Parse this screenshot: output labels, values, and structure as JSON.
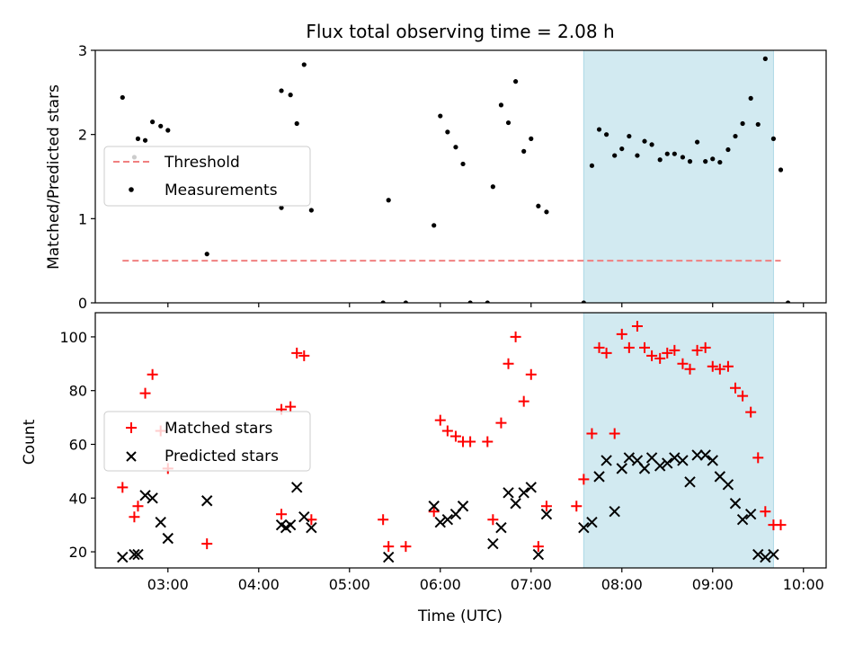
{
  "chart_data": [
    {
      "type": "scatter",
      "title": "Flux total observing time = 2.08 h",
      "xlabel": "",
      "ylabel": "Matched/Predicted stars",
      "x_unit": "hours UTC",
      "xlim": [
        2.2,
        10.25
      ],
      "ylim": [
        0,
        3
      ],
      "x_ticks": [
        3,
        4,
        5,
        6,
        7,
        8,
        9,
        10
      ],
      "y_ticks": [
        0,
        1,
        2,
        3
      ],
      "y_tick_labels": [
        "0",
        "1",
        "2",
        "3"
      ],
      "grid": false,
      "legend_position": "center-left",
      "highlight": {
        "x": [
          7.58,
          9.67
        ],
        "color": "#add8e6"
      },
      "threshold": {
        "name": "Threshold",
        "x": [
          2.5,
          9.75
        ],
        "y": 0.5,
        "color": "#f08080",
        "style": "dashed"
      },
      "series": [
        {
          "name": "Measurements",
          "marker": "dot",
          "color": "#000000",
          "points": [
            [
              2.5,
              2.44
            ],
            [
              2.63,
              1.73
            ],
            [
              2.67,
              1.95
            ],
            [
              2.75,
              1.93
            ],
            [
              2.83,
              2.15
            ],
            [
              2.92,
              2.1
            ],
            [
              3.0,
              2.05
            ],
            [
              3.43,
              0.58
            ],
            [
              4.25,
              1.13
            ],
            [
              4.25,
              2.52
            ],
            [
              4.35,
              2.47
            ],
            [
              4.42,
              2.13
            ],
            [
              4.5,
              2.83
            ],
            [
              4.58,
              1.1
            ],
            [
              5.37,
              0.0
            ],
            [
              5.43,
              1.22
            ],
            [
              5.62,
              0.0
            ],
            [
              5.93,
              0.92
            ],
            [
              6.0,
              2.22
            ],
            [
              6.08,
              2.03
            ],
            [
              6.17,
              1.85
            ],
            [
              6.25,
              1.65
            ],
            [
              6.33,
              0.0
            ],
            [
              6.52,
              0.0
            ],
            [
              6.58,
              1.38
            ],
            [
              6.67,
              2.35
            ],
            [
              6.75,
              2.14
            ],
            [
              6.83,
              2.63
            ],
            [
              6.92,
              1.8
            ],
            [
              7.0,
              1.95
            ],
            [
              7.08,
              1.15
            ],
            [
              7.17,
              1.08
            ],
            [
              7.58,
              0.0
            ],
            [
              7.67,
              1.63
            ],
            [
              7.75,
              2.06
            ],
            [
              7.83,
              2.0
            ],
            [
              7.92,
              1.75
            ],
            [
              8.0,
              1.83
            ],
            [
              8.08,
              1.98
            ],
            [
              8.17,
              1.75
            ],
            [
              8.25,
              1.92
            ],
            [
              8.33,
              1.88
            ],
            [
              8.42,
              1.7
            ],
            [
              8.5,
              1.77
            ],
            [
              8.58,
              1.77
            ],
            [
              8.67,
              1.73
            ],
            [
              8.75,
              1.68
            ],
            [
              8.83,
              1.91
            ],
            [
              8.92,
              1.68
            ],
            [
              9.0,
              1.71
            ],
            [
              9.08,
              1.67
            ],
            [
              9.17,
              1.82
            ],
            [
              9.25,
              1.98
            ],
            [
              9.33,
              2.13
            ],
            [
              9.42,
              2.43
            ],
            [
              9.5,
              2.12
            ],
            [
              9.58,
              2.9
            ],
            [
              9.67,
              1.95
            ],
            [
              9.75,
              1.58
            ],
            [
              9.83,
              0.0
            ]
          ]
        }
      ]
    },
    {
      "type": "scatter",
      "title": "",
      "xlabel": "Time (UTC)",
      "ylabel": "Count",
      "x_unit": "hours UTC",
      "xlim": [
        2.2,
        10.25
      ],
      "ylim": [
        14,
        109
      ],
      "x_ticks": [
        3,
        4,
        5,
        6,
        7,
        8,
        9,
        10
      ],
      "x_tick_labels": [
        "03:00",
        "04:00",
        "05:00",
        "06:00",
        "07:00",
        "08:00",
        "09:00",
        "10:00"
      ],
      "y_ticks": [
        20,
        40,
        60,
        80,
        100
      ],
      "y_tick_labels": [
        "20",
        "40",
        "60",
        "80",
        "100"
      ],
      "grid": false,
      "legend_position": "center-left",
      "highlight": {
        "x": [
          7.58,
          9.67
        ],
        "color": "#add8e6"
      },
      "series": [
        {
          "name": "Matched stars",
          "marker": "plus",
          "color": "#ff0000",
          "points": [
            [
              2.5,
              44
            ],
            [
              2.63,
              33
            ],
            [
              2.67,
              37
            ],
            [
              2.75,
              79
            ],
            [
              2.83,
              86
            ],
            [
              2.92,
              65
            ],
            [
              3.0,
              51
            ],
            [
              3.43,
              23
            ],
            [
              4.25,
              34
            ],
            [
              4.25,
              73
            ],
            [
              4.35,
              74
            ],
            [
              4.42,
              94
            ],
            [
              4.5,
              93
            ],
            [
              4.58,
              32
            ],
            [
              5.37,
              32
            ],
            [
              5.43,
              22
            ],
            [
              5.62,
              22
            ],
            [
              5.93,
              35
            ],
            [
              6.0,
              69
            ],
            [
              6.08,
              65
            ],
            [
              6.17,
              63
            ],
            [
              6.25,
              61
            ],
            [
              6.33,
              61
            ],
            [
              6.52,
              61
            ],
            [
              6.58,
              32
            ],
            [
              6.67,
              68
            ],
            [
              6.75,
              90
            ],
            [
              6.83,
              100
            ],
            [
              6.92,
              76
            ],
            [
              7.0,
              86
            ],
            [
              7.08,
              22
            ],
            [
              7.17,
              37
            ],
            [
              7.5,
              37
            ],
            [
              7.58,
              47
            ],
            [
              7.67,
              64
            ],
            [
              7.75,
              96
            ],
            [
              7.83,
              94
            ],
            [
              7.92,
              64
            ],
            [
              8.0,
              101
            ],
            [
              8.08,
              96
            ],
            [
              8.17,
              104
            ],
            [
              8.25,
              96
            ],
            [
              8.33,
              93
            ],
            [
              8.42,
              92
            ],
            [
              8.5,
              94
            ],
            [
              8.58,
              95
            ],
            [
              8.67,
              90
            ],
            [
              8.75,
              88
            ],
            [
              8.83,
              95
            ],
            [
              8.92,
              96
            ],
            [
              9.0,
              89
            ],
            [
              9.08,
              88
            ],
            [
              9.17,
              89
            ],
            [
              9.25,
              81
            ],
            [
              9.33,
              78
            ],
            [
              9.42,
              72
            ],
            [
              9.5,
              55
            ],
            [
              9.58,
              35
            ],
            [
              9.67,
              30
            ],
            [
              9.75,
              30
            ]
          ]
        },
        {
          "name": "Predicted stars",
          "marker": "cross",
          "color": "#000000",
          "points": [
            [
              2.5,
              18
            ],
            [
              2.63,
              19
            ],
            [
              2.67,
              19
            ],
            [
              2.75,
              41
            ],
            [
              2.83,
              40
            ],
            [
              2.92,
              31
            ],
            [
              3.0,
              25
            ],
            [
              3.43,
              39
            ],
            [
              4.25,
              30
            ],
            [
              4.3,
              29
            ],
            [
              4.35,
              30
            ],
            [
              4.42,
              44
            ],
            [
              4.5,
              33
            ],
            [
              4.58,
              29
            ],
            [
              5.43,
              18
            ],
            [
              5.93,
              37
            ],
            [
              6.0,
              31
            ],
            [
              6.08,
              32
            ],
            [
              6.17,
              34
            ],
            [
              6.25,
              37
            ],
            [
              6.58,
              23
            ],
            [
              6.67,
              29
            ],
            [
              6.75,
              42
            ],
            [
              6.83,
              38
            ],
            [
              6.92,
              42
            ],
            [
              7.0,
              44
            ],
            [
              7.08,
              19
            ],
            [
              7.17,
              34
            ],
            [
              7.58,
              29
            ],
            [
              7.67,
              31
            ],
            [
              7.75,
              48
            ],
            [
              7.83,
              54
            ],
            [
              7.92,
              35
            ],
            [
              8.0,
              51
            ],
            [
              8.08,
              55
            ],
            [
              8.17,
              54
            ],
            [
              8.25,
              51
            ],
            [
              8.33,
              55
            ],
            [
              8.42,
              52
            ],
            [
              8.5,
              53
            ],
            [
              8.58,
              55
            ],
            [
              8.67,
              54
            ],
            [
              8.75,
              46
            ],
            [
              8.83,
              56
            ],
            [
              8.92,
              56
            ],
            [
              9.0,
              54
            ],
            [
              9.08,
              48
            ],
            [
              9.17,
              45
            ],
            [
              9.25,
              38
            ],
            [
              9.33,
              32
            ],
            [
              9.42,
              34
            ],
            [
              9.5,
              19
            ],
            [
              9.58,
              18
            ],
            [
              9.67,
              19
            ]
          ]
        }
      ]
    }
  ]
}
